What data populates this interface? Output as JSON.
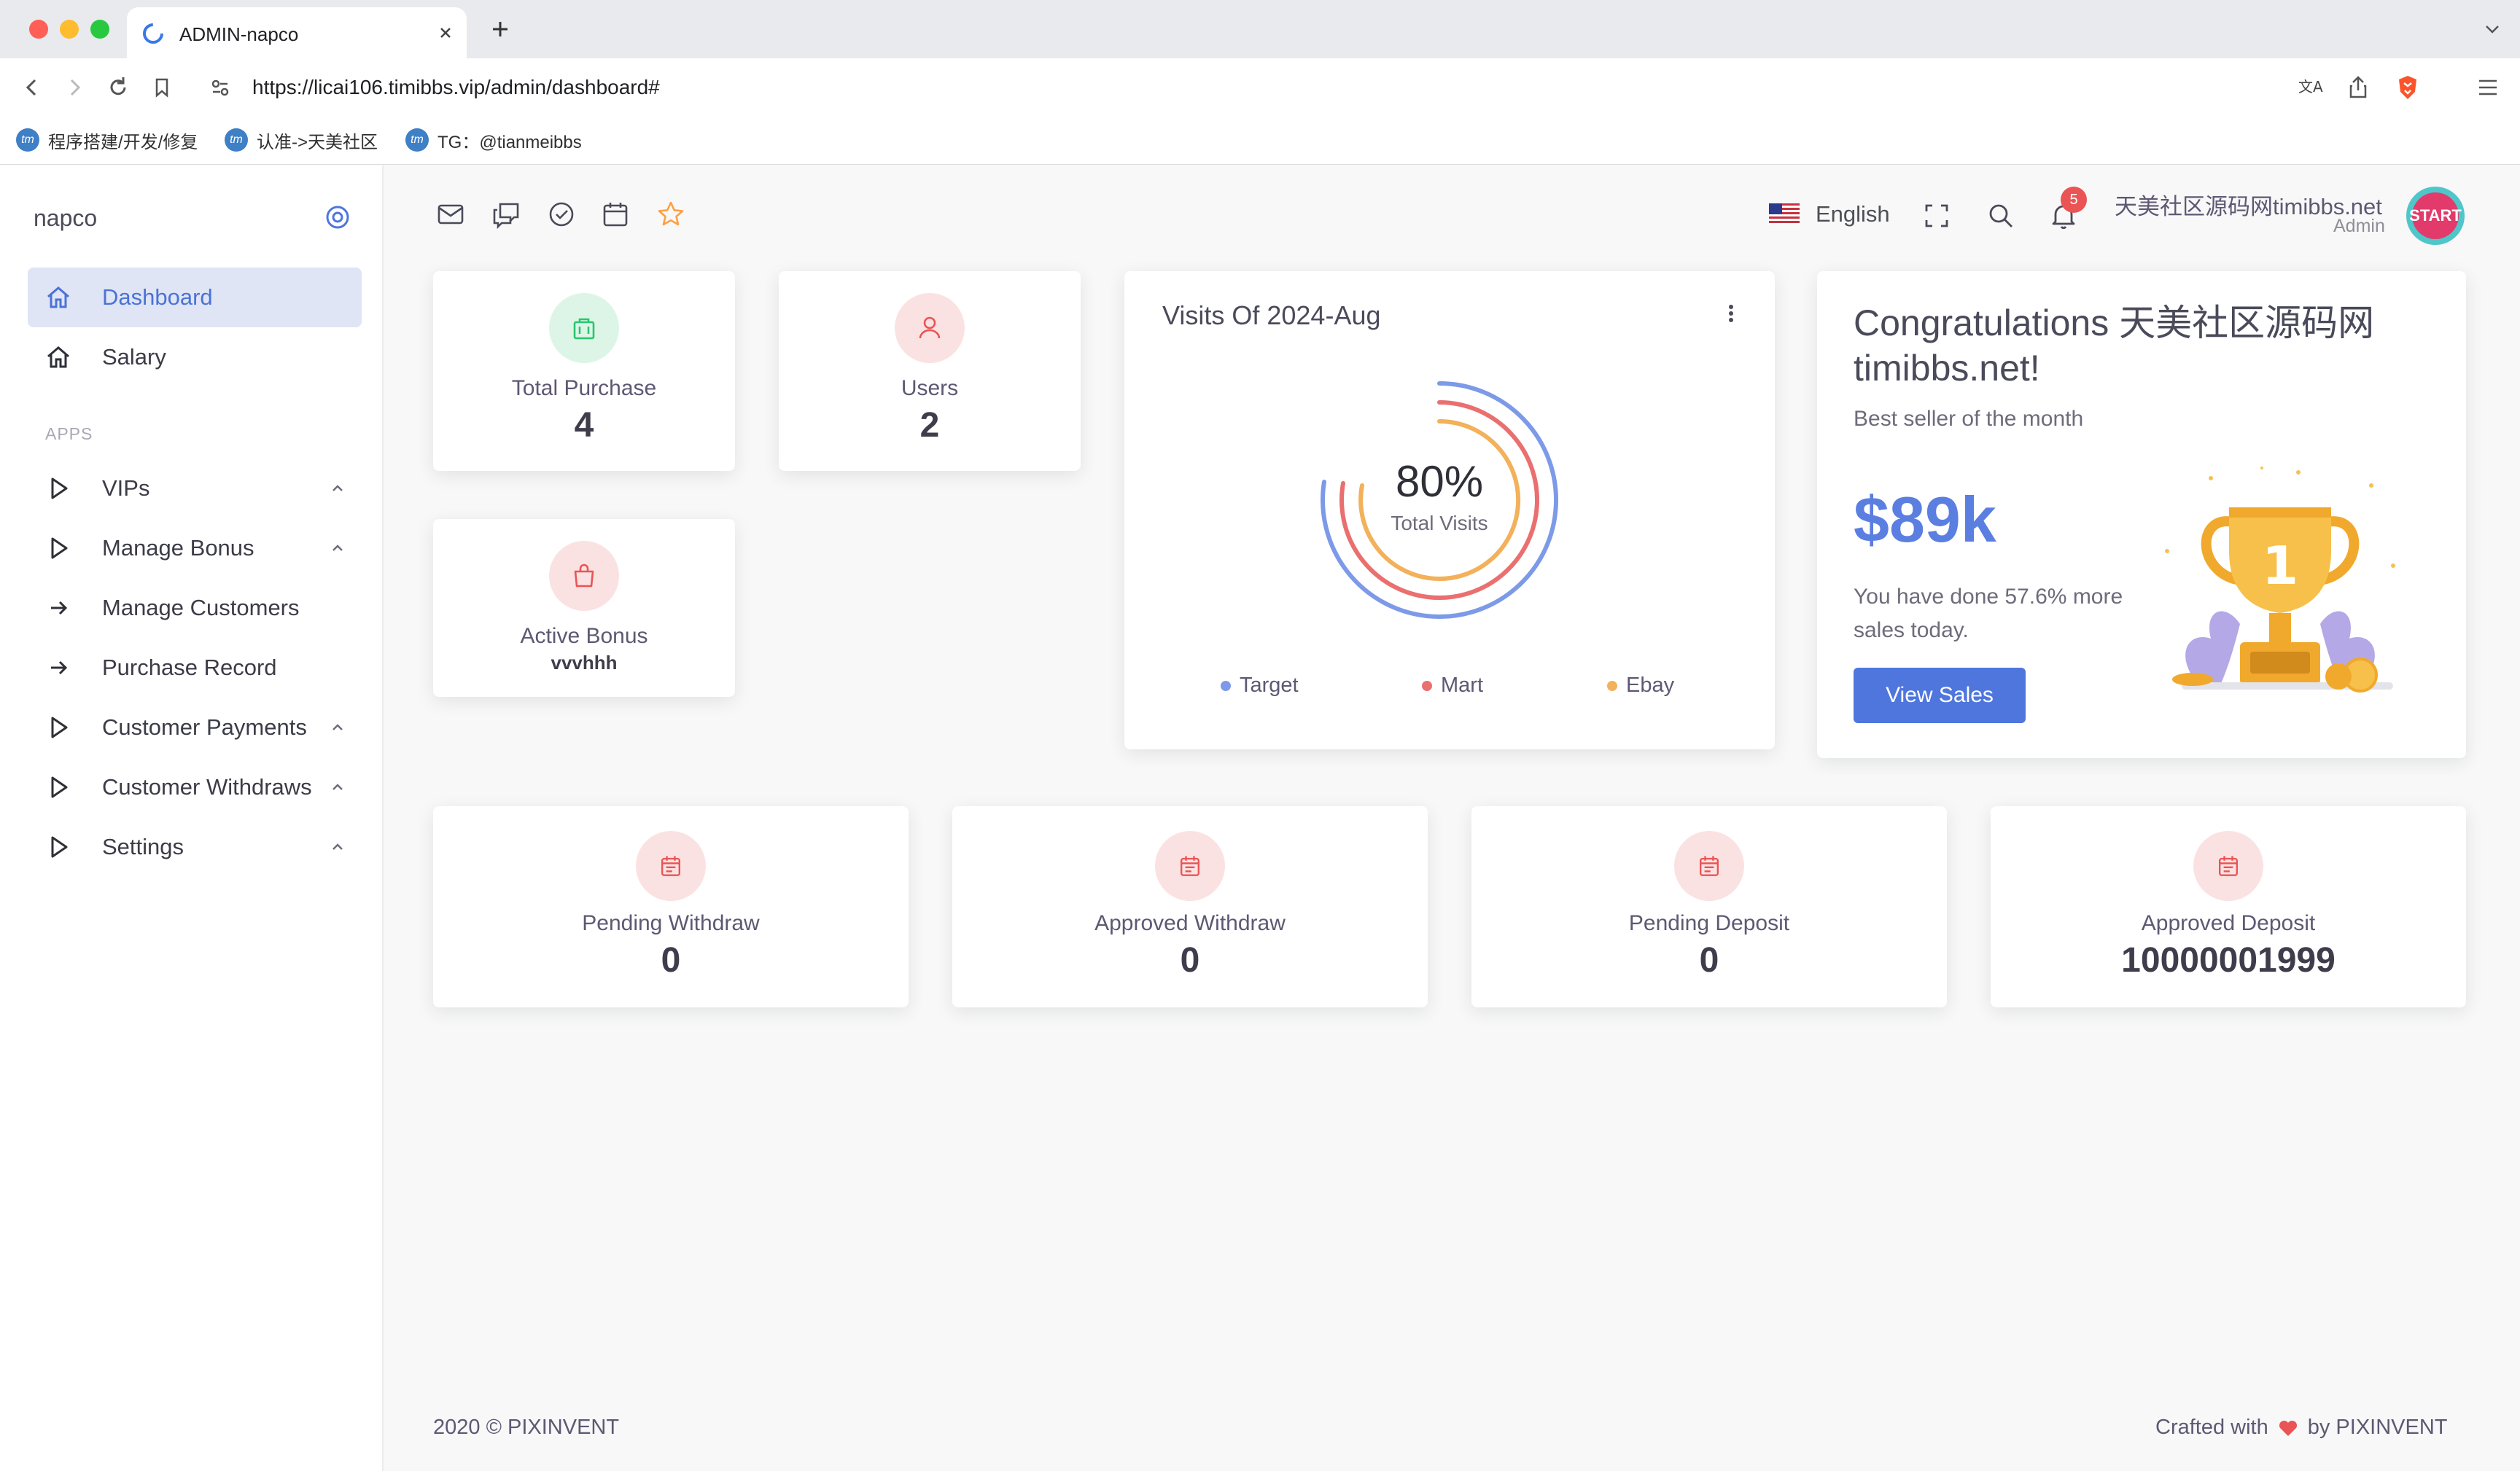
{
  "browser": {
    "tab_title": "ADMIN-napco",
    "url": "https://licai106.timibbs.vip/admin/dashboard#",
    "bookmarks": [
      "程序搭建/开发/修复",
      "认准->天美社区",
      "TG：@tianmeibbs"
    ]
  },
  "sidebar": {
    "brand": "napco",
    "section_label": "APPS",
    "items": [
      {
        "label": "Dashboard",
        "icon": "home-icon",
        "active": true
      },
      {
        "label": "Salary",
        "icon": "home-icon"
      },
      {
        "label": "VIPs",
        "icon": "play-icon",
        "expandable": true
      },
      {
        "label": "Manage Bonus",
        "icon": "play-icon",
        "expandable": true
      },
      {
        "label": "Manage Customers",
        "icon": "arrow-right-icon"
      },
      {
        "label": "Purchase Record",
        "icon": "arrow-right-icon"
      },
      {
        "label": "Customer Payments",
        "icon": "play-icon",
        "expandable": true
      },
      {
        "label": "Customer Withdraws",
        "icon": "play-icon",
        "expandable": true
      },
      {
        "label": "Settings",
        "icon": "play-icon",
        "expandable": true
      }
    ]
  },
  "header": {
    "shortcuts": [
      "mail-icon",
      "chat-icon",
      "check-circle-icon",
      "calendar-icon",
      "star-icon"
    ],
    "language": "English",
    "notification_count": "5",
    "user_name": "天美社区源码网timibbs.net",
    "user_role": "Admin",
    "avatar_text": "START"
  },
  "stats": {
    "total_purchase": {
      "label": "Total Purchase",
      "value": "4"
    },
    "users": {
      "label": "Users",
      "value": "2"
    },
    "active_bonus": {
      "label": "Active Bonus",
      "value": "vvvhhh"
    }
  },
  "visits": {
    "title": "Visits Of 2024-Aug",
    "percent": "80%",
    "percent_label": "Total Visits",
    "legend": [
      {
        "name": "Target",
        "color": "#7d9ae8"
      },
      {
        "name": "Mart",
        "color": "#ea6f6f"
      },
      {
        "name": "Ebay",
        "color": "#f2b15a"
      }
    ]
  },
  "congrats": {
    "title": "Congratulations 天美社区源码网timibbs.net!",
    "subtitle": "Best seller of the month",
    "amount": "$89k",
    "description": "You have done 57.6% more sales today.",
    "button": "View Sales"
  },
  "transactions": [
    {
      "label": "Pending Withdraw",
      "value": "0"
    },
    {
      "label": "Approved Withdraw",
      "value": "0"
    },
    {
      "label": "Pending Deposit",
      "value": "0"
    },
    {
      "label": "Approved Deposit",
      "value": "10000001999"
    }
  ],
  "footer": {
    "copyright": "2020 © PIXINVENT",
    "crafted": "Crafted with",
    "by": "by PIXINVENT"
  },
  "colors": {
    "primary": "#4e76dd",
    "success": "#28c76f",
    "danger": "#ea5455",
    "warning": "#ff9f43"
  }
}
